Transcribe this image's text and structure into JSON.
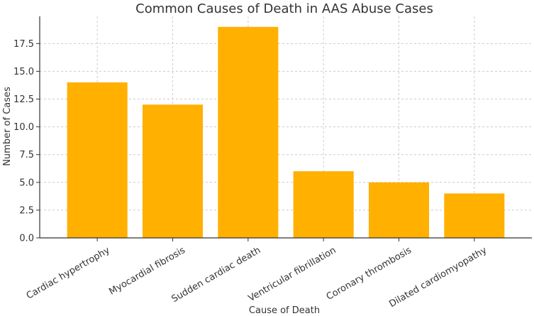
{
  "chart_data": {
    "type": "bar",
    "title": "Common Causes of Death in AAS Abuse Cases",
    "xlabel": "Cause of Death",
    "ylabel": "Number of Cases",
    "categories": [
      "Cardiac hypertrophy",
      "Myocardial fibrosis",
      "Sudden cardiac death",
      "Ventricular fibrillation",
      "Coronary thrombosis",
      "Dilated cardiomyopathy"
    ],
    "values": [
      14,
      12,
      19,
      6,
      5,
      4
    ],
    "ylim": [
      0,
      19.95
    ],
    "yticks": [
      0.0,
      2.5,
      5.0,
      7.5,
      10.0,
      12.5,
      15.0,
      17.5
    ],
    "ytick_labels": [
      "0.0",
      "2.5",
      "5.0",
      "7.5",
      "10.0",
      "12.5",
      "15.0",
      "17.5"
    ],
    "grid": true,
    "bar_color": "#FFB000"
  }
}
